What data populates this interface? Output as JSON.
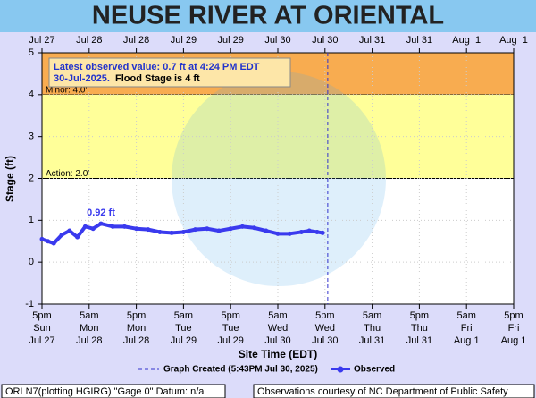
{
  "chart_data": {
    "type": "line",
    "title": "NEUSE RIVER AT ORIENTAL",
    "ylabel": "Stage (ft)",
    "xlabel": "Site Time (EDT)",
    "ylim": [
      -1,
      5
    ],
    "yticks": [
      -1,
      0,
      1,
      2,
      3,
      4,
      5
    ],
    "xlim": [
      0,
      120
    ],
    "xticks": [
      {
        "value": 0,
        "label": [
          "5pm",
          "Sun",
          "Jul 27"
        ]
      },
      {
        "value": 12,
        "label": [
          "5am",
          "Mon",
          "Jul 28"
        ]
      },
      {
        "value": 24,
        "label": [
          "5pm",
          "Mon",
          "Jul 28"
        ]
      },
      {
        "value": 36,
        "label": [
          "5am",
          "Tue",
          "Jul 29"
        ]
      },
      {
        "value": 48,
        "label": [
          "5pm",
          "Tue",
          "Jul 29"
        ]
      },
      {
        "value": 60,
        "label": [
          "5am",
          "Wed",
          "Jul 30"
        ]
      },
      {
        "value": 72,
        "label": [
          "5pm",
          "Wed",
          "Jul 30"
        ]
      },
      {
        "value": 84,
        "label": [
          "5am",
          "Thu",
          "Jul 31"
        ]
      },
      {
        "value": 96,
        "label": [
          "5pm",
          "Thu",
          "Jul 31"
        ]
      },
      {
        "value": 108,
        "label": [
          "5am",
          "Fri",
          "Aug 1"
        ]
      },
      {
        "value": 120,
        "label": [
          "5pm",
          "Fri",
          "Aug 1"
        ]
      }
    ],
    "x2ticks": [
      {
        "value": 0,
        "label": "Jul 27"
      },
      {
        "value": 12,
        "label": "Jul 28"
      },
      {
        "value": 24,
        "label": "Jul 28"
      },
      {
        "value": 36,
        "label": "Jul 29"
      },
      {
        "value": 48,
        "label": "Jul 29"
      },
      {
        "value": 60,
        "label": "Jul 30"
      },
      {
        "value": 72,
        "label": "Jul 30"
      },
      {
        "value": 84,
        "label": "Jul 31"
      },
      {
        "value": 96,
        "label": "Jul 31"
      },
      {
        "value": 108,
        "label": "Aug  1"
      },
      {
        "value": 120,
        "label": "Aug  1"
      }
    ],
    "grid": true,
    "bands": [
      {
        "label": "Minor: 4.0'",
        "from": 4,
        "color": "#f8ac50"
      },
      {
        "label": "Action: 2.0'",
        "from": 2,
        "color": "#ffff99"
      }
    ],
    "annotation": {
      "line1": "Latest observed value: 0.7 ft at 4:24 PM EDT",
      "date": "30-Jul-2025.",
      "flood_stage": "Flood Stage is 4 ft"
    },
    "peak_label": "0.92 ft",
    "created": {
      "x": 72.7,
      "label": "Graph Created (5:43PM Jul 30, 2025)",
      "color": "#3333cc"
    },
    "series": [
      {
        "name": "Observed",
        "color": "#3a3aee",
        "x": [
          0,
          1.5,
          3,
          5,
          7,
          9,
          11,
          13,
          15,
          18,
          21,
          24,
          27,
          30,
          33,
          36,
          39,
          42,
          45,
          48,
          51,
          54,
          57,
          60,
          63,
          66,
          68,
          70,
          71.4
        ],
        "values": [
          0.55,
          0.5,
          0.45,
          0.65,
          0.75,
          0.6,
          0.85,
          0.8,
          0.92,
          0.85,
          0.85,
          0.8,
          0.78,
          0.72,
          0.7,
          0.72,
          0.78,
          0.8,
          0.75,
          0.8,
          0.85,
          0.82,
          0.75,
          0.68,
          0.68,
          0.72,
          0.75,
          0.72,
          0.7
        ]
      }
    ],
    "footer_left": "ORLN7(plotting HGIRG) \"Gage 0\" Datum: n/a",
    "footer_right": "Observations courtesy of NC Department of Public Safety"
  }
}
